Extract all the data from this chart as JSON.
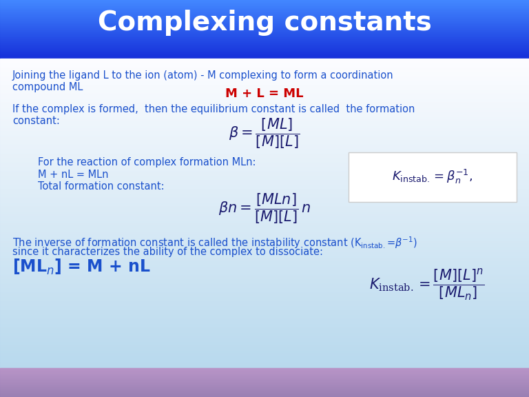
{
  "title": "Complexing constants",
  "title_color": "#ffffff",
  "title_fontsize": 28,
  "title_fontstyle": "bold",
  "header_bg_color": "#1a3aff",
  "text_color": "#1a50cc",
  "dark_blue": "#1a1a6e",
  "red_color": "#cc0000",
  "text1_line1": "Joining the ligand L to the ion (atom) - M complexing to form a coordination",
  "text1_line2": "compound ML",
  "text_red": "M + L = ML",
  "text2_line1": "If the complex is formed,  then the equilibrium constant is called  the formation",
  "text2_line2": "constant:",
  "text3a": "For the reaction of complex formation MLn:",
  "text3b": "M + nL = MLn",
  "text3c": "Total formation constant:",
  "text4_line1": "The inverse of formation constant is called the instability constant (K",
  "text4_sup": "instab.",
  "text4_end": "=-1)",
  "text4_line2": "since it characterizes the ability of the complex to dissociate:",
  "text5": "[MLn] = M + nL"
}
